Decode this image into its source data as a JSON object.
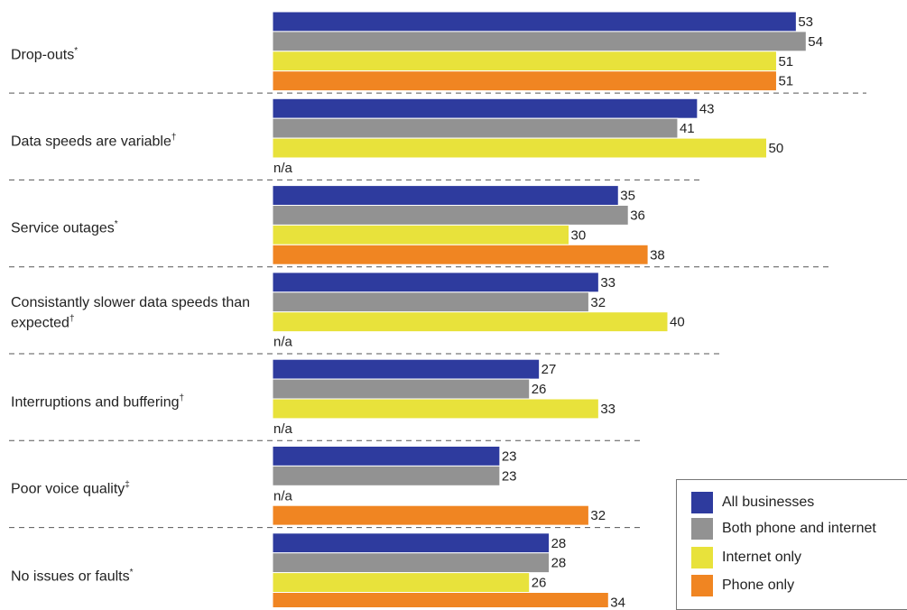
{
  "chart_data": {
    "type": "bar",
    "orientation": "horizontal",
    "title": "",
    "xlabel": "",
    "ylabel": "",
    "xlim": [
      0,
      54
    ],
    "grid": false,
    "legend_position": "bottom-right",
    "missing_label": "n/a",
    "categories": [
      {
        "label": "Drop-outs",
        "mark": "*"
      },
      {
        "label": "Data speeds are variable",
        "mark": "†"
      },
      {
        "label": "Service outages",
        "mark": "*"
      },
      {
        "label": "Consistantly slower data speeds than expected",
        "mark": "†"
      },
      {
        "label": "Interruptions and buffering",
        "mark": "†"
      },
      {
        "label": "Poor voice quality",
        "mark": "‡"
      },
      {
        "label": "No issues or faults",
        "mark": "*"
      }
    ],
    "series": [
      {
        "name": "All businesses",
        "color": "#2e3b9e",
        "values": [
          53,
          43,
          35,
          33,
          27,
          23,
          28
        ]
      },
      {
        "name": "Both phone and internet",
        "color": "#929292",
        "values": [
          54,
          41,
          36,
          32,
          26,
          23,
          28
        ]
      },
      {
        "name": "Internet only",
        "color": "#e8e23b",
        "values": [
          51,
          50,
          30,
          40,
          33,
          null,
          26
        ]
      },
      {
        "name": "Phone only",
        "color": "#f08522",
        "values": [
          51,
          null,
          38,
          null,
          null,
          32,
          34
        ]
      }
    ]
  }
}
